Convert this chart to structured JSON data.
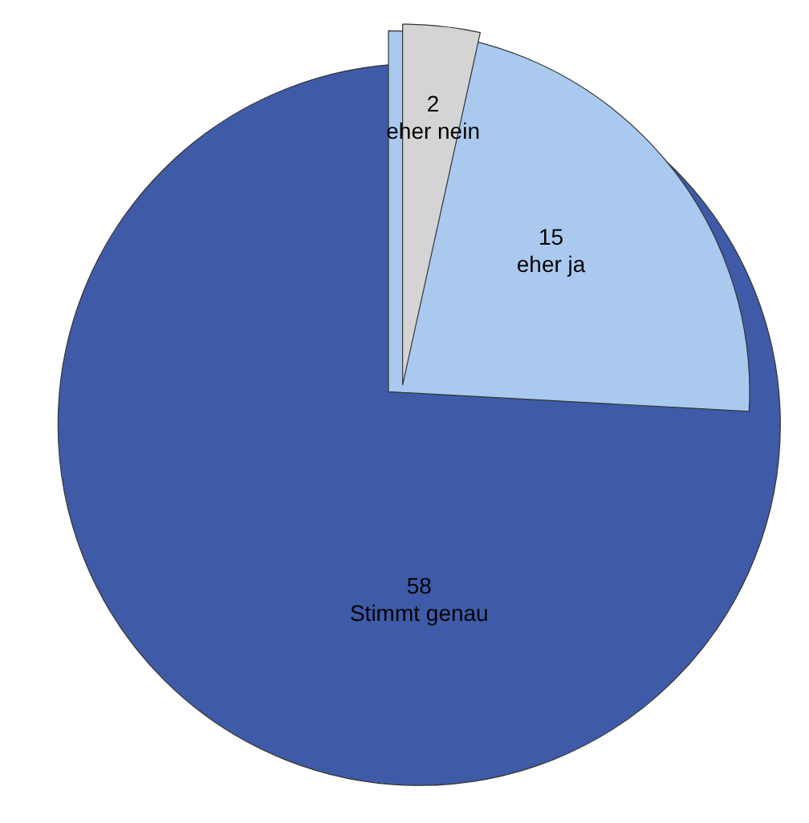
{
  "chart_data": {
    "type": "pie",
    "categories": [
      "Stimmt genau",
      "eher ja",
      "eher nein"
    ],
    "values": [
      58,
      15,
      2
    ],
    "colors": [
      "#3f5ba8",
      "#a9c9ef",
      "#d4d4d4"
    ],
    "data_labels": true
  }
}
